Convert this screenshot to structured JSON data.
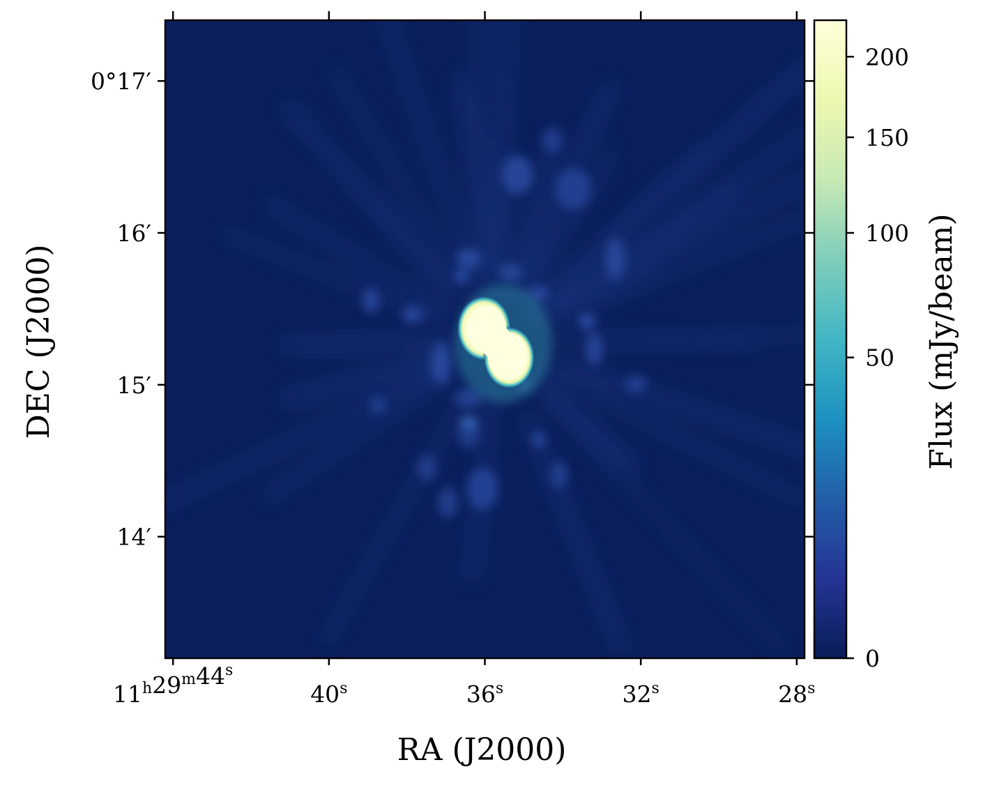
{
  "chart_data": {
    "type": "heatmap",
    "xlabel": "RA (J2000)",
    "ylabel": "DEC (J2000)",
    "x_ticks": [
      {
        "ra_seconds": 44,
        "label_main": "11",
        "label_h": "h",
        "label_mid": "29",
        "label_m": "m",
        "label_sec": "44",
        "label_s": "s"
      },
      {
        "ra_seconds": 40,
        "label_main": "",
        "label_h": "",
        "label_mid": "",
        "label_m": "",
        "label_sec": "40",
        "label_s": "s"
      },
      {
        "ra_seconds": 36,
        "label_main": "",
        "label_h": "",
        "label_mid": "",
        "label_m": "",
        "label_sec": "36",
        "label_s": "s"
      },
      {
        "ra_seconds": 32,
        "label_main": "",
        "label_h": "",
        "label_mid": "",
        "label_m": "",
        "label_sec": "32",
        "label_s": "s"
      },
      {
        "ra_seconds": 28,
        "label_main": "",
        "label_h": "",
        "label_mid": "",
        "label_m": "",
        "label_sec": "28",
        "label_s": "s"
      }
    ],
    "y_ticks": [
      {
        "dec_arcmin": 17,
        "label": "0°17′"
      },
      {
        "dec_arcmin": 16,
        "label": "16′"
      },
      {
        "dec_arcmin": 15,
        "label": "15′"
      },
      {
        "dec_arcmin": 14,
        "label": "14′"
      }
    ],
    "xlim_seconds": [
      44.2,
      27.8
    ],
    "ylim_arcmin": [
      13.2,
      17.4
    ],
    "source": {
      "ra_seconds": 35.7,
      "dec_arcmin": 15.28,
      "peak_flux": 220
    },
    "colorbar": {
      "label": "Flux (mJy/beam)",
      "scale": "sqrt",
      "min": 0,
      "max": 225,
      "ticks": [
        0,
        50,
        100,
        150,
        200
      ],
      "tick_labels": [
        "0",
        "50",
        "100",
        "150",
        "200"
      ],
      "colormap": "YlGnBu",
      "colors": [
        "#081d58",
        "#253494",
        "#225ea8",
        "#1d91c0",
        "#41b6c4",
        "#7fcdbb",
        "#c7e9b4",
        "#edf8b1",
        "#ffffd9"
      ]
    }
  }
}
